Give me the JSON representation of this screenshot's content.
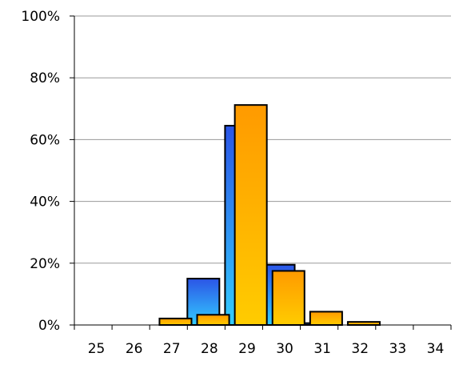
{
  "chart_data": {
    "type": "bar",
    "categories": [
      "25",
      "26",
      "27",
      "28",
      "29",
      "30",
      "31",
      "32",
      "33",
      "34"
    ],
    "series": [
      {
        "values": [
          0,
          0,
          0,
          15,
          64.5,
          19.5,
          0.6,
          0,
          0,
          0
        ],
        "color_top": "#2b55e6",
        "color_bottom": "#33ccff"
      },
      {
        "values": [
          0,
          0,
          2.1,
          3.3,
          71.2,
          17.5,
          4.3,
          1.0,
          0,
          0
        ],
        "color_top": "#ff9a00",
        "color_bottom": "#ffcc00"
      }
    ],
    "title": "",
    "xlabel": "",
    "ylabel": "",
    "ylim": [
      0,
      100
    ],
    "yticks": [
      "0%",
      "20%",
      "40%",
      "60%",
      "80%",
      "100%"
    ],
    "grid": true,
    "legend": "none"
  }
}
